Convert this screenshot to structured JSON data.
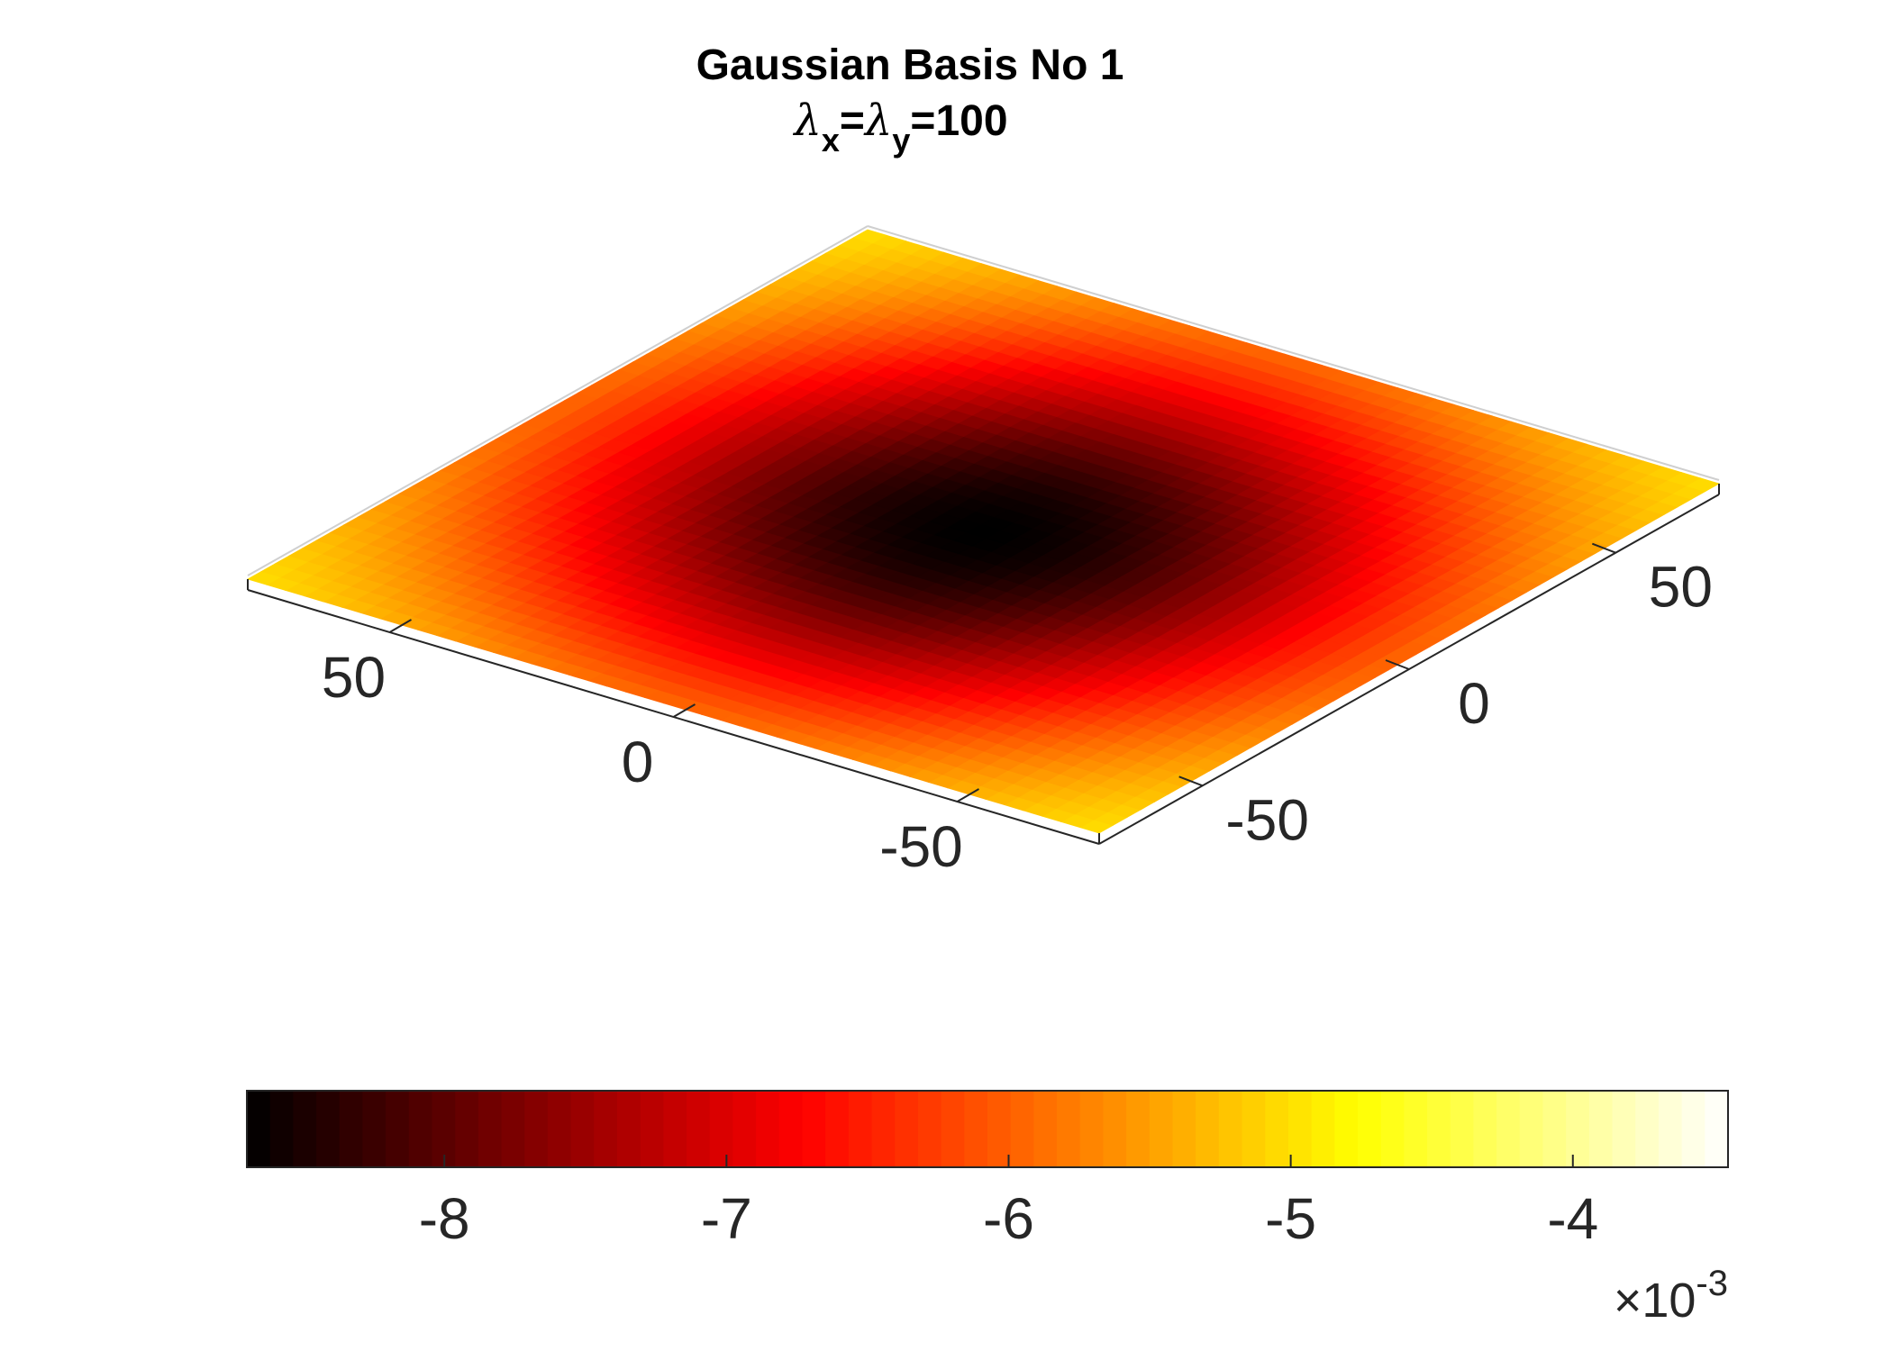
{
  "chart_data": {
    "type": "surface",
    "title": {
      "line1": "Gaussian Basis No 1",
      "line2": {
        "lambda1": "λ",
        "sub1": "x",
        "eq1": "=",
        "lambda2": "λ",
        "sub2": "y",
        "eq2": "=100"
      }
    },
    "view": "3d-isometric-from-above",
    "x_axis": {
      "label": "",
      "range": [
        -75,
        75
      ],
      "ticks": [
        -50,
        0,
        50
      ],
      "tick_labels": [
        "-50",
        "0",
        "50"
      ]
    },
    "y_axis": {
      "label": "",
      "range": [
        -75,
        75
      ],
      "ticks": [
        -50,
        0,
        50
      ],
      "tick_labels": [
        "-50",
        "0",
        "50"
      ]
    },
    "surface": {
      "function": "gaussian",
      "grid_points": 45,
      "center": [
        0,
        0
      ],
      "sigma": 50,
      "z_min": -0.0087,
      "z_max_corner": -0.005
    },
    "colormap": "hot",
    "colorbar": {
      "location": "bottom",
      "range": [
        -0.0087,
        -0.00345
      ],
      "ticks": [
        -0.008,
        -0.007,
        -0.006,
        -0.005,
        -0.004
      ],
      "tick_labels": [
        "-8",
        "-7",
        "-6",
        "-5",
        "-4"
      ],
      "exponent_label": {
        "times": "×10",
        "exponent": "-3"
      }
    },
    "grid": false
  }
}
